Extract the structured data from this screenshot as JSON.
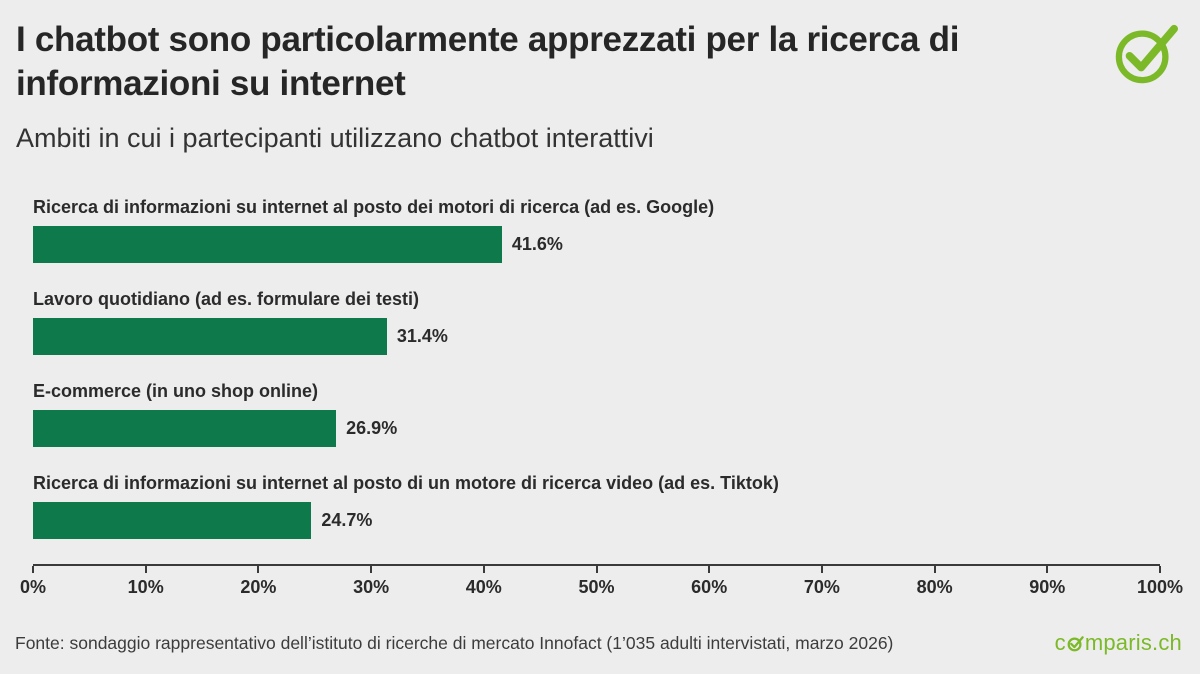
{
  "page": {
    "title": "I chatbot sono particolarmente apprezzati per la ricerca di informazioni su internet",
    "subtitle": "Ambiti in cui i partecipanti utilizzano chatbot interattivi",
    "source": "Fonte: sondaggio rappresentativo dell’istituto di ricerche di mercato Innofact (1’035 adulti intervistati, marzo 2026)",
    "brand_prefix": "c",
    "brand_suffix": "mparis.ch"
  },
  "colors": {
    "bar_color": "#0e7a4c",
    "accent_green": "#7cb928",
    "background": "#ededed",
    "text": "#2b2b2b"
  },
  "chart_data": {
    "type": "bar",
    "orientation": "horizontal",
    "title": "I chatbot sono particolarmente apprezzati per la ricerca di informazioni su internet",
    "subtitle": "Ambiti in cui i partecipanti utilizzano chatbot interattivi",
    "categories": [
      "Ricerca di informazioni su internet al posto dei motori di ricerca (ad es. Google)",
      "Lavoro quotidiano (ad es. formulare dei testi)",
      "E-commerce (in uno shop online)",
      "Ricerca di informazioni su internet al posto di un motore di ricerca video (ad es. Tiktok)"
    ],
    "values": [
      41.6,
      31.4,
      26.9,
      24.7
    ],
    "value_labels": [
      "41.6%",
      "31.4%",
      "26.9%",
      "24.7%"
    ],
    "xlim": [
      0,
      100
    ],
    "x_ticks": [
      "0%",
      "10%",
      "20%",
      "30%",
      "40%",
      "50%",
      "60%",
      "70%",
      "80%",
      "90%",
      "100%"
    ],
    "grid": false,
    "legend": false
  }
}
